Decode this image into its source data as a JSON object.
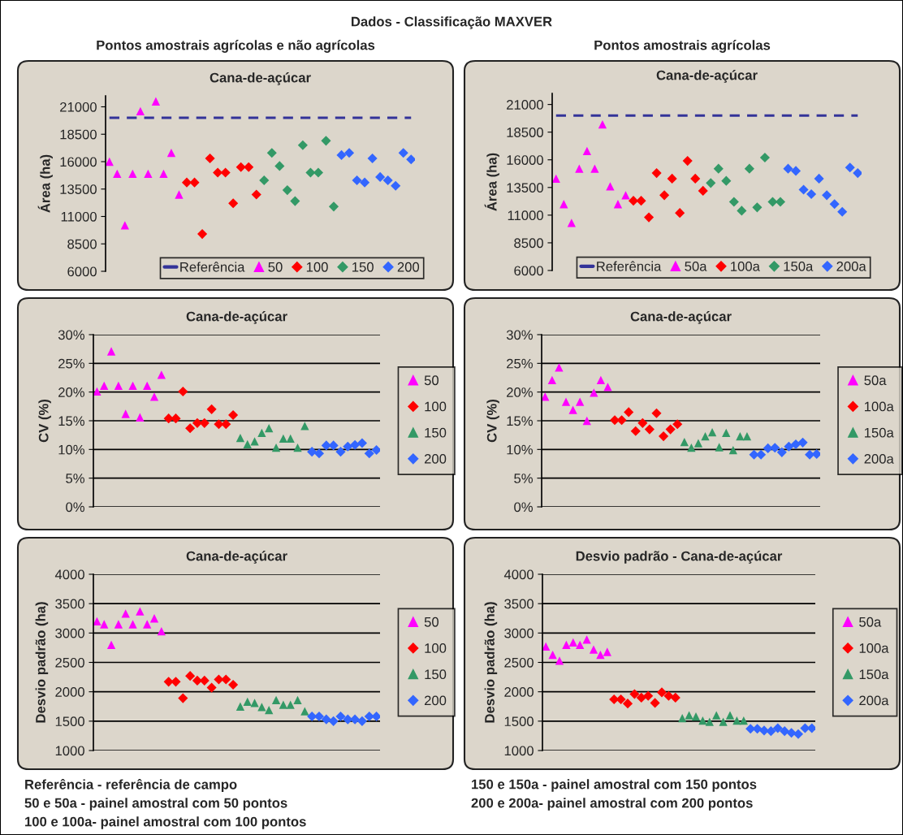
{
  "chart_data": [
    {
      "type": "scatter",
      "subtitle": "Pontos amostrais agrícolas e não agrícolas",
      "title": "Cana-de-açúcar",
      "ylabel": "Área (ha)",
      "annotations": [
        "Dados - Classificação MAXVER",
        "Referência - referência de campo",
        "50 e 50a - painel amostral com 50 pontos",
        "100 e 100a- painel amostral com 100 pontos"
      ],
      "categories": [
        null,
        null,
        null,
        null,
        null,
        null,
        null,
        null,
        null,
        null,
        null,
        null,
        null,
        null,
        null,
        null,
        null,
        null,
        null,
        null,
        null,
        null,
        null,
        null,
        null,
        null,
        null,
        null,
        null,
        null,
        null,
        null,
        null,
        null,
        null,
        null,
        null,
        null,
        null,
        null
      ],
      "ylim": [
        6000,
        22000
      ],
      "yticks": [
        6000,
        8500,
        11000,
        13500,
        16000,
        18500,
        21000
      ],
      "legend": "bottom right",
      "series": [
        {
          "name": "Referência",
          "type": "line",
          "line_style": "dashed",
          "color": "#333399",
          "values": [
            20000,
            20000,
            20000,
            20000,
            20000,
            20000,
            20000,
            20000,
            20000,
            20000,
            20000,
            20000,
            20000,
            20000,
            20000,
            20000,
            20000,
            20000,
            20000,
            20000,
            20000,
            20000,
            20000,
            20000,
            20000,
            20000,
            20000,
            20000,
            20000,
            20000,
            20000,
            20000,
            20000,
            20000,
            20000,
            20000,
            20000,
            20000,
            20000,
            20000
          ]
        },
        {
          "name": "50",
          "marker": "triangle",
          "color": "#ff00ff",
          "values": [
            16000,
            14900,
            10200,
            14900,
            20600,
            14900,
            21500,
            14900,
            16800,
            13000,
            null,
            null,
            null,
            null,
            null,
            null,
            null,
            null,
            null,
            null,
            null,
            null,
            null,
            null,
            null,
            null,
            null,
            null,
            null,
            null,
            null,
            null,
            null,
            null,
            null,
            null,
            null,
            null,
            null,
            null
          ]
        },
        {
          "name": "100",
          "marker": "diamond",
          "color": "#ff0000",
          "values": [
            null,
            null,
            null,
            null,
            null,
            null,
            null,
            null,
            null,
            null,
            14100,
            14100,
            9400,
            16300,
            15000,
            15000,
            12200,
            15500,
            15500,
            13000,
            null,
            null,
            null,
            null,
            null,
            null,
            null,
            null,
            null,
            null,
            null,
            null,
            null,
            null,
            null,
            null,
            null,
            null,
            null,
            null
          ]
        },
        {
          "name": "150",
          "marker": "diamond",
          "color": "#339966",
          "values": [
            null,
            null,
            null,
            null,
            null,
            null,
            null,
            null,
            null,
            null,
            null,
            null,
            null,
            null,
            null,
            null,
            null,
            null,
            null,
            null,
            14300,
            16800,
            15600,
            13400,
            12400,
            17500,
            15000,
            15000,
            17900,
            11900,
            null,
            null,
            null,
            null,
            null,
            null,
            null,
            null,
            null,
            null
          ]
        },
        {
          "name": "200",
          "marker": "diamond",
          "color": "#3366ff",
          "values": [
            null,
            null,
            null,
            null,
            null,
            null,
            null,
            null,
            null,
            null,
            null,
            null,
            null,
            null,
            null,
            null,
            null,
            null,
            null,
            null,
            null,
            null,
            null,
            null,
            null,
            null,
            null,
            null,
            null,
            null,
            16600,
            16800,
            14300,
            14100,
            16300,
            14600,
            14300,
            13800,
            16800,
            16200
          ]
        }
      ]
    },
    {
      "type": "scatter",
      "subtitle": "Pontos amostrais agrícolas",
      "title": "Cana-de-açúcar",
      "ylabel": "Área (ha)",
      "annotations": [
        "150 e 150a - painel amostral com 150 pontos",
        "200 e 200a- painel amostral com 200 pontos"
      ],
      "categories": [
        null,
        null,
        null,
        null,
        null,
        null,
        null,
        null,
        null,
        null,
        null,
        null,
        null,
        null,
        null,
        null,
        null,
        null,
        null,
        null,
        null,
        null,
        null,
        null,
        null,
        null,
        null,
        null,
        null,
        null,
        null,
        null,
        null,
        null,
        null,
        null,
        null,
        null,
        null,
        null
      ],
      "ylim": [
        6000,
        22000
      ],
      "yticks": [
        6000,
        8500,
        11000,
        13500,
        16000,
        18500,
        21000
      ],
      "legend": "bottom right",
      "series": [
        {
          "name": "Referência",
          "type": "line",
          "line_style": "dashed",
          "color": "#333399",
          "values": [
            20000,
            20000,
            20000,
            20000,
            20000,
            20000,
            20000,
            20000,
            20000,
            20000,
            20000,
            20000,
            20000,
            20000,
            20000,
            20000,
            20000,
            20000,
            20000,
            20000,
            20000,
            20000,
            20000,
            20000,
            20000,
            20000,
            20000,
            20000,
            20000,
            20000,
            20000,
            20000,
            20000,
            20000,
            20000,
            20000,
            20000,
            20000,
            20000,
            20000
          ]
        },
        {
          "name": "50a",
          "marker": "triangle",
          "color": "#ff00ff",
          "values": [
            14300,
            12000,
            10300,
            15200,
            16800,
            15200,
            19200,
            13600,
            12000,
            12800,
            null,
            null,
            null,
            null,
            null,
            null,
            null,
            null,
            null,
            null,
            null,
            null,
            null,
            null,
            null,
            null,
            null,
            null,
            null,
            null,
            null,
            null,
            null,
            null,
            null,
            null,
            null,
            null,
            null,
            null
          ]
        },
        {
          "name": "100a",
          "marker": "diamond",
          "color": "#ff0000",
          "values": [
            null,
            null,
            null,
            null,
            null,
            null,
            null,
            null,
            null,
            null,
            12300,
            12300,
            10800,
            14800,
            12800,
            14300,
            11200,
            15900,
            14300,
            13200,
            null,
            null,
            null,
            null,
            null,
            null,
            null,
            null,
            null,
            null,
            null,
            null,
            null,
            null,
            null,
            null,
            null,
            null,
            null,
            null
          ]
        },
        {
          "name": "150a",
          "marker": "diamond",
          "color": "#339966",
          "values": [
            null,
            null,
            null,
            null,
            null,
            null,
            null,
            null,
            null,
            null,
            null,
            null,
            null,
            null,
            null,
            null,
            null,
            null,
            null,
            null,
            13900,
            15200,
            14100,
            12200,
            11400,
            15200,
            11700,
            16200,
            12200,
            12200,
            null,
            null,
            null,
            null,
            null,
            null,
            null,
            null,
            null,
            null
          ]
        },
        {
          "name": "200a",
          "marker": "diamond",
          "color": "#3366ff",
          "values": [
            null,
            null,
            null,
            null,
            null,
            null,
            null,
            null,
            null,
            null,
            null,
            null,
            null,
            null,
            null,
            null,
            null,
            null,
            null,
            null,
            null,
            null,
            null,
            null,
            null,
            null,
            null,
            null,
            null,
            null,
            15200,
            15000,
            13300,
            12900,
            14300,
            12800,
            12000,
            11300,
            15300,
            14800
          ]
        }
      ]
    },
    {
      "type": "scatter",
      "title": "Cana-de-açúcar",
      "ylabel": "CV (%)",
      "categories": [
        null,
        null,
        null,
        null,
        null,
        null,
        null,
        null,
        null,
        null,
        null,
        null,
        null,
        null,
        null,
        null,
        null,
        null,
        null,
        null,
        null,
        null,
        null,
        null,
        null,
        null,
        null,
        null,
        null,
        null,
        null,
        null,
        null,
        null,
        null,
        null,
        null,
        null,
        null,
        null
      ],
      "ylim": [
        0,
        30
      ],
      "yticks": [
        {
          "value": 0,
          "label": "0%"
        },
        {
          "value": 5,
          "label": "5%"
        },
        {
          "value": 10,
          "label": "10%"
        },
        {
          "value": 15,
          "label": "15%"
        },
        {
          "value": 20,
          "label": "20%"
        },
        {
          "value": 25,
          "label": "25%"
        },
        {
          "value": 30,
          "label": "30%"
        }
      ],
      "grid": "y",
      "legend": "right",
      "series": [
        {
          "name": "50",
          "marker": "triangle",
          "color": "#ff00ff",
          "values": [
            20.1,
            21.1,
            27.1,
            21.1,
            16.2,
            21.1,
            15.6,
            21.1,
            19.2,
            23.0,
            null,
            null,
            null,
            null,
            null,
            null,
            null,
            null,
            null,
            null,
            null,
            null,
            null,
            null,
            null,
            null,
            null,
            null,
            null,
            null,
            null,
            null,
            null,
            null,
            null,
            null,
            null,
            null,
            null,
            null
          ]
        },
        {
          "name": "100",
          "marker": "diamond",
          "color": "#ff0000",
          "values": [
            null,
            null,
            null,
            null,
            null,
            null,
            null,
            null,
            null,
            null,
            15.4,
            15.4,
            20.1,
            13.7,
            14.6,
            14.6,
            17.0,
            14.4,
            14.4,
            16.0,
            null,
            null,
            null,
            null,
            null,
            null,
            null,
            null,
            null,
            null,
            null,
            null,
            null,
            null,
            null,
            null,
            null,
            null,
            null,
            null
          ]
        },
        {
          "name": "150",
          "marker": "triangle",
          "color": "#339966",
          "values": [
            null,
            null,
            null,
            null,
            null,
            null,
            null,
            null,
            null,
            null,
            null,
            null,
            null,
            null,
            null,
            null,
            null,
            null,
            null,
            null,
            12.0,
            10.9,
            11.4,
            12.9,
            13.7,
            10.3,
            11.9,
            11.9,
            10.3,
            14.1,
            null,
            null,
            null,
            null,
            null,
            null,
            null,
            null,
            null,
            null
          ]
        },
        {
          "name": "200",
          "marker": "diamond",
          "color": "#3366ff",
          "values": [
            null,
            null,
            null,
            null,
            null,
            null,
            null,
            null,
            null,
            null,
            null,
            null,
            null,
            null,
            null,
            null,
            null,
            null,
            null,
            null,
            null,
            null,
            null,
            null,
            null,
            null,
            null,
            null,
            null,
            null,
            9.6,
            9.3,
            10.7,
            10.7,
            9.6,
            10.5,
            10.8,
            11.1,
            9.3,
            9.9
          ]
        }
      ]
    },
    {
      "type": "scatter",
      "title": "Cana-de-açúcar",
      "ylabel": "CV (%)",
      "categories": [
        null,
        null,
        null,
        null,
        null,
        null,
        null,
        null,
        null,
        null,
        null,
        null,
        null,
        null,
        null,
        null,
        null,
        null,
        null,
        null,
        null,
        null,
        null,
        null,
        null,
        null,
        null,
        null,
        null,
        null,
        null,
        null,
        null,
        null,
        null,
        null,
        null,
        null,
        null,
        null
      ],
      "ylim": [
        0,
        30
      ],
      "yticks": [
        {
          "value": 0,
          "label": "0%"
        },
        {
          "value": 5,
          "label": "5%"
        },
        {
          "value": 10,
          "label": "10%"
        },
        {
          "value": 15,
          "label": "15%"
        },
        {
          "value": 20,
          "label": "20%"
        },
        {
          "value": 25,
          "label": "25%"
        },
        {
          "value": 30,
          "label": "30%"
        }
      ],
      "grid": "y",
      "legend": "right",
      "series": [
        {
          "name": "50a",
          "marker": "triangle",
          "color": "#ff00ff",
          "values": [
            19.2,
            22.1,
            24.3,
            18.3,
            16.9,
            18.3,
            15.0,
            19.9,
            22.1,
            20.9,
            null,
            null,
            null,
            null,
            null,
            null,
            null,
            null,
            null,
            null,
            null,
            null,
            null,
            null,
            null,
            null,
            null,
            null,
            null,
            null,
            null,
            null,
            null,
            null,
            null,
            null,
            null,
            null,
            null,
            null
          ]
        },
        {
          "name": "100a",
          "marker": "diamond",
          "color": "#ff0000",
          "values": [
            null,
            null,
            null,
            null,
            null,
            null,
            null,
            null,
            null,
            null,
            15.1,
            15.1,
            16.5,
            13.2,
            14.6,
            13.5,
            16.3,
            12.3,
            13.5,
            14.4,
            null,
            null,
            null,
            null,
            null,
            null,
            null,
            null,
            null,
            null,
            null,
            null,
            null,
            null,
            null,
            null,
            null,
            null,
            null,
            null
          ]
        },
        {
          "name": "150a",
          "marker": "triangle",
          "color": "#339966",
          "values": [
            null,
            null,
            null,
            null,
            null,
            null,
            null,
            null,
            null,
            null,
            null,
            null,
            null,
            null,
            null,
            null,
            null,
            null,
            null,
            null,
            11.3,
            10.3,
            11.1,
            12.3,
            13.0,
            10.4,
            12.9,
            9.9,
            12.3,
            12.3,
            null,
            null,
            null,
            null,
            null,
            null,
            null,
            null,
            null,
            null
          ]
        },
        {
          "name": "200a",
          "marker": "diamond",
          "color": "#3366ff",
          "values": [
            null,
            null,
            null,
            null,
            null,
            null,
            null,
            null,
            null,
            null,
            null,
            null,
            null,
            null,
            null,
            null,
            null,
            null,
            null,
            null,
            null,
            null,
            null,
            null,
            null,
            null,
            null,
            null,
            null,
            null,
            9.1,
            9.1,
            10.2,
            10.3,
            9.5,
            10.5,
            10.9,
            11.2,
            9.1,
            9.2
          ]
        }
      ]
    },
    {
      "type": "scatter",
      "title": "Cana-de-açúcar",
      "ylabel": "Desvio padrão (ha)",
      "categories": [
        null,
        null,
        null,
        null,
        null,
        null,
        null,
        null,
        null,
        null,
        null,
        null,
        null,
        null,
        null,
        null,
        null,
        null,
        null,
        null,
        null,
        null,
        null,
        null,
        null,
        null,
        null,
        null,
        null,
        null,
        null,
        null,
        null,
        null,
        null,
        null,
        null,
        null,
        null,
        null
      ],
      "ylim": [
        1000,
        4000
      ],
      "yticks": [
        1000,
        1500,
        2000,
        2500,
        3000,
        3500,
        4000
      ],
      "grid": "y",
      "legend": "right",
      "series": [
        {
          "name": "50",
          "marker": "triangle",
          "color": "#ff00ff",
          "values": [
            3200,
            3150,
            2800,
            3150,
            3330,
            3150,
            3370,
            3150,
            3250,
            3030,
            null,
            null,
            null,
            null,
            null,
            null,
            null,
            null,
            null,
            null,
            null,
            null,
            null,
            null,
            null,
            null,
            null,
            null,
            null,
            null,
            null,
            null,
            null,
            null,
            null,
            null,
            null,
            null,
            null,
            null
          ]
        },
        {
          "name": "100",
          "marker": "diamond",
          "color": "#ff0000",
          "values": [
            null,
            null,
            null,
            null,
            null,
            null,
            null,
            null,
            null,
            null,
            2170,
            2170,
            1890,
            2270,
            2190,
            2190,
            2070,
            2210,
            2210,
            2120,
            null,
            null,
            null,
            null,
            null,
            null,
            null,
            null,
            null,
            null,
            null,
            null,
            null,
            null,
            null,
            null,
            null,
            null,
            null,
            null
          ]
        },
        {
          "name": "150",
          "marker": "triangle",
          "color": "#339966",
          "values": [
            null,
            null,
            null,
            null,
            null,
            null,
            null,
            null,
            null,
            null,
            null,
            null,
            null,
            null,
            null,
            null,
            null,
            null,
            null,
            null,
            1750,
            1830,
            1810,
            1740,
            1690,
            1860,
            1780,
            1780,
            1860,
            1670,
            null,
            null,
            null,
            null,
            null,
            null,
            null,
            null,
            null,
            null
          ]
        },
        {
          "name": "200",
          "marker": "diamond",
          "color": "#3366ff",
          "values": [
            null,
            null,
            null,
            null,
            null,
            null,
            null,
            null,
            null,
            null,
            null,
            null,
            null,
            null,
            null,
            null,
            null,
            null,
            null,
            null,
            null,
            null,
            null,
            null,
            null,
            null,
            null,
            null,
            null,
            null,
            1580,
            1580,
            1530,
            1500,
            1580,
            1530,
            1530,
            1500,
            1580,
            1580
          ]
        }
      ]
    },
    {
      "type": "scatter",
      "title": "Desvio padrão - Cana-de-açúcar",
      "ylabel": "Desvio padrão (ha)",
      "categories": [
        null,
        null,
        null,
        null,
        null,
        null,
        null,
        null,
        null,
        null,
        null,
        null,
        null,
        null,
        null,
        null,
        null,
        null,
        null,
        null,
        null,
        null,
        null,
        null,
        null,
        null,
        null,
        null,
        null,
        null,
        null,
        null,
        null,
        null,
        null,
        null,
        null,
        null,
        null,
        null
      ],
      "ylim": [
        1000,
        4000
      ],
      "yticks": [
        1000,
        1500,
        2000,
        2500,
        3000,
        3500,
        4000
      ],
      "grid": "y",
      "legend": "right",
      "series": [
        {
          "name": "50a",
          "marker": "triangle",
          "color": "#ff00ff",
          "values": [
            2770,
            2630,
            2530,
            2800,
            2840,
            2800,
            2890,
            2720,
            2630,
            2680,
            null,
            null,
            null,
            null,
            null,
            null,
            null,
            null,
            null,
            null,
            null,
            null,
            null,
            null,
            null,
            null,
            null,
            null,
            null,
            null,
            null,
            null,
            null,
            null,
            null,
            null,
            null,
            null,
            null,
            null
          ]
        },
        {
          "name": "100a",
          "marker": "diamond",
          "color": "#ff0000",
          "values": [
            null,
            null,
            null,
            null,
            null,
            null,
            null,
            null,
            null,
            null,
            1870,
            1870,
            1800,
            1960,
            1900,
            1930,
            1810,
            1990,
            1930,
            1900,
            null,
            null,
            null,
            null,
            null,
            null,
            null,
            null,
            null,
            null,
            null,
            null,
            null,
            null,
            null,
            null,
            null,
            null,
            null,
            null
          ]
        },
        {
          "name": "150a",
          "marker": "triangle",
          "color": "#339966",
          "values": [
            null,
            null,
            null,
            null,
            null,
            null,
            null,
            null,
            null,
            null,
            null,
            null,
            null,
            null,
            null,
            null,
            null,
            null,
            null,
            null,
            1550,
            1600,
            1580,
            1510,
            1490,
            1600,
            1490,
            1600,
            1510,
            1510,
            null,
            null,
            null,
            null,
            null,
            null,
            null,
            null,
            null,
            null
          ]
        },
        {
          "name": "200a",
          "marker": "diamond",
          "color": "#3366ff",
          "values": [
            null,
            null,
            null,
            null,
            null,
            null,
            null,
            null,
            null,
            null,
            null,
            null,
            null,
            null,
            null,
            null,
            null,
            null,
            null,
            null,
            null,
            null,
            null,
            null,
            null,
            null,
            null,
            null,
            null,
            null,
            1370,
            1370,
            1340,
            1330,
            1380,
            1330,
            1300,
            1280,
            1380,
            1380
          ]
        }
      ]
    }
  ]
}
